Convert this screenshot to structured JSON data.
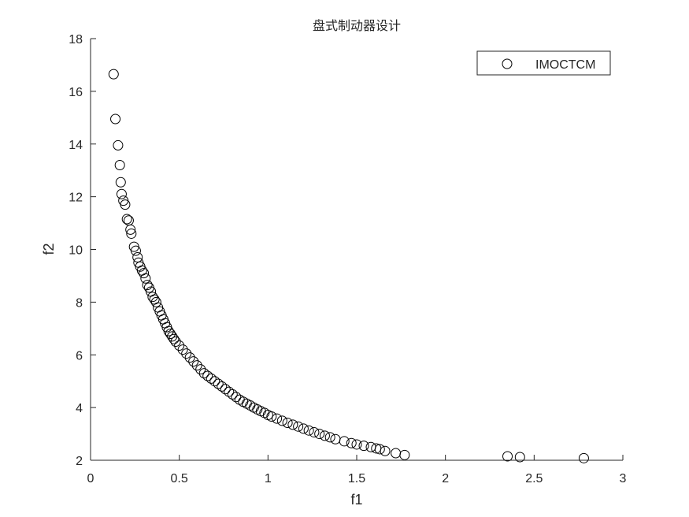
{
  "chart_data": {
    "type": "scatter",
    "title": "盘式制动器设计",
    "xlabel": "f1",
    "ylabel": "f2",
    "xlim": [
      0,
      3
    ],
    "ylim": [
      2,
      18
    ],
    "xticks": [
      0,
      0.5,
      1,
      1.5,
      2,
      2.5,
      3
    ],
    "xtick_labels": [
      "0",
      "0.5",
      "1",
      "1.5",
      "2",
      "2.5",
      "3"
    ],
    "yticks": [
      2,
      4,
      6,
      8,
      10,
      12,
      14,
      16,
      18
    ],
    "ytick_labels": [
      "2",
      "4",
      "6",
      "8",
      "10",
      "12",
      "14",
      "16",
      "18"
    ],
    "grid": false,
    "legend_position": "top-right",
    "marker": "open-circle",
    "marker_color": "#000000",
    "series": [
      {
        "name": "IMOCTCM",
        "x": [
          0.13,
          0.14,
          0.155,
          0.165,
          0.17,
          0.175,
          0.185,
          0.195,
          0.205,
          0.215,
          0.225,
          0.23,
          0.245,
          0.255,
          0.265,
          0.27,
          0.28,
          0.29,
          0.3,
          0.31,
          0.32,
          0.33,
          0.34,
          0.35,
          0.36,
          0.37,
          0.38,
          0.39,
          0.4,
          0.41,
          0.42,
          0.43,
          0.44,
          0.45,
          0.46,
          0.47,
          0.48,
          0.5,
          0.52,
          0.54,
          0.56,
          0.58,
          0.6,
          0.62,
          0.64,
          0.66,
          0.68,
          0.7,
          0.72,
          0.74,
          0.76,
          0.78,
          0.8,
          0.82,
          0.84,
          0.86,
          0.88,
          0.9,
          0.92,
          0.94,
          0.96,
          0.98,
          1.0,
          1.02,
          1.05,
          1.08,
          1.11,
          1.14,
          1.17,
          1.2,
          1.23,
          1.26,
          1.29,
          1.32,
          1.35,
          1.38,
          1.43,
          1.47,
          1.5,
          1.54,
          1.58,
          1.61,
          1.63,
          1.66,
          1.72,
          1.77,
          2.35,
          2.42,
          2.78
        ],
        "y": [
          16.65,
          14.95,
          13.95,
          13.2,
          12.55,
          12.1,
          11.85,
          11.7,
          11.15,
          11.1,
          10.75,
          10.6,
          10.1,
          9.95,
          9.7,
          9.5,
          9.35,
          9.2,
          9.1,
          8.9,
          8.65,
          8.55,
          8.4,
          8.2,
          8.1,
          8.0,
          7.8,
          7.65,
          7.5,
          7.35,
          7.2,
          7.05,
          6.9,
          6.8,
          6.7,
          6.6,
          6.5,
          6.35,
          6.2,
          6.05,
          5.9,
          5.75,
          5.6,
          5.45,
          5.3,
          5.2,
          5.1,
          5.0,
          4.9,
          4.8,
          4.7,
          4.6,
          4.5,
          4.4,
          4.3,
          4.22,
          4.15,
          4.08,
          4.0,
          3.93,
          3.86,
          3.8,
          3.72,
          3.66,
          3.58,
          3.5,
          3.42,
          3.35,
          3.28,
          3.2,
          3.13,
          3.06,
          3.0,
          2.93,
          2.87,
          2.8,
          2.72,
          2.65,
          2.6,
          2.55,
          2.5,
          2.45,
          2.42,
          2.35,
          2.27,
          2.2,
          2.15,
          2.12,
          2.08
        ]
      }
    ]
  }
}
